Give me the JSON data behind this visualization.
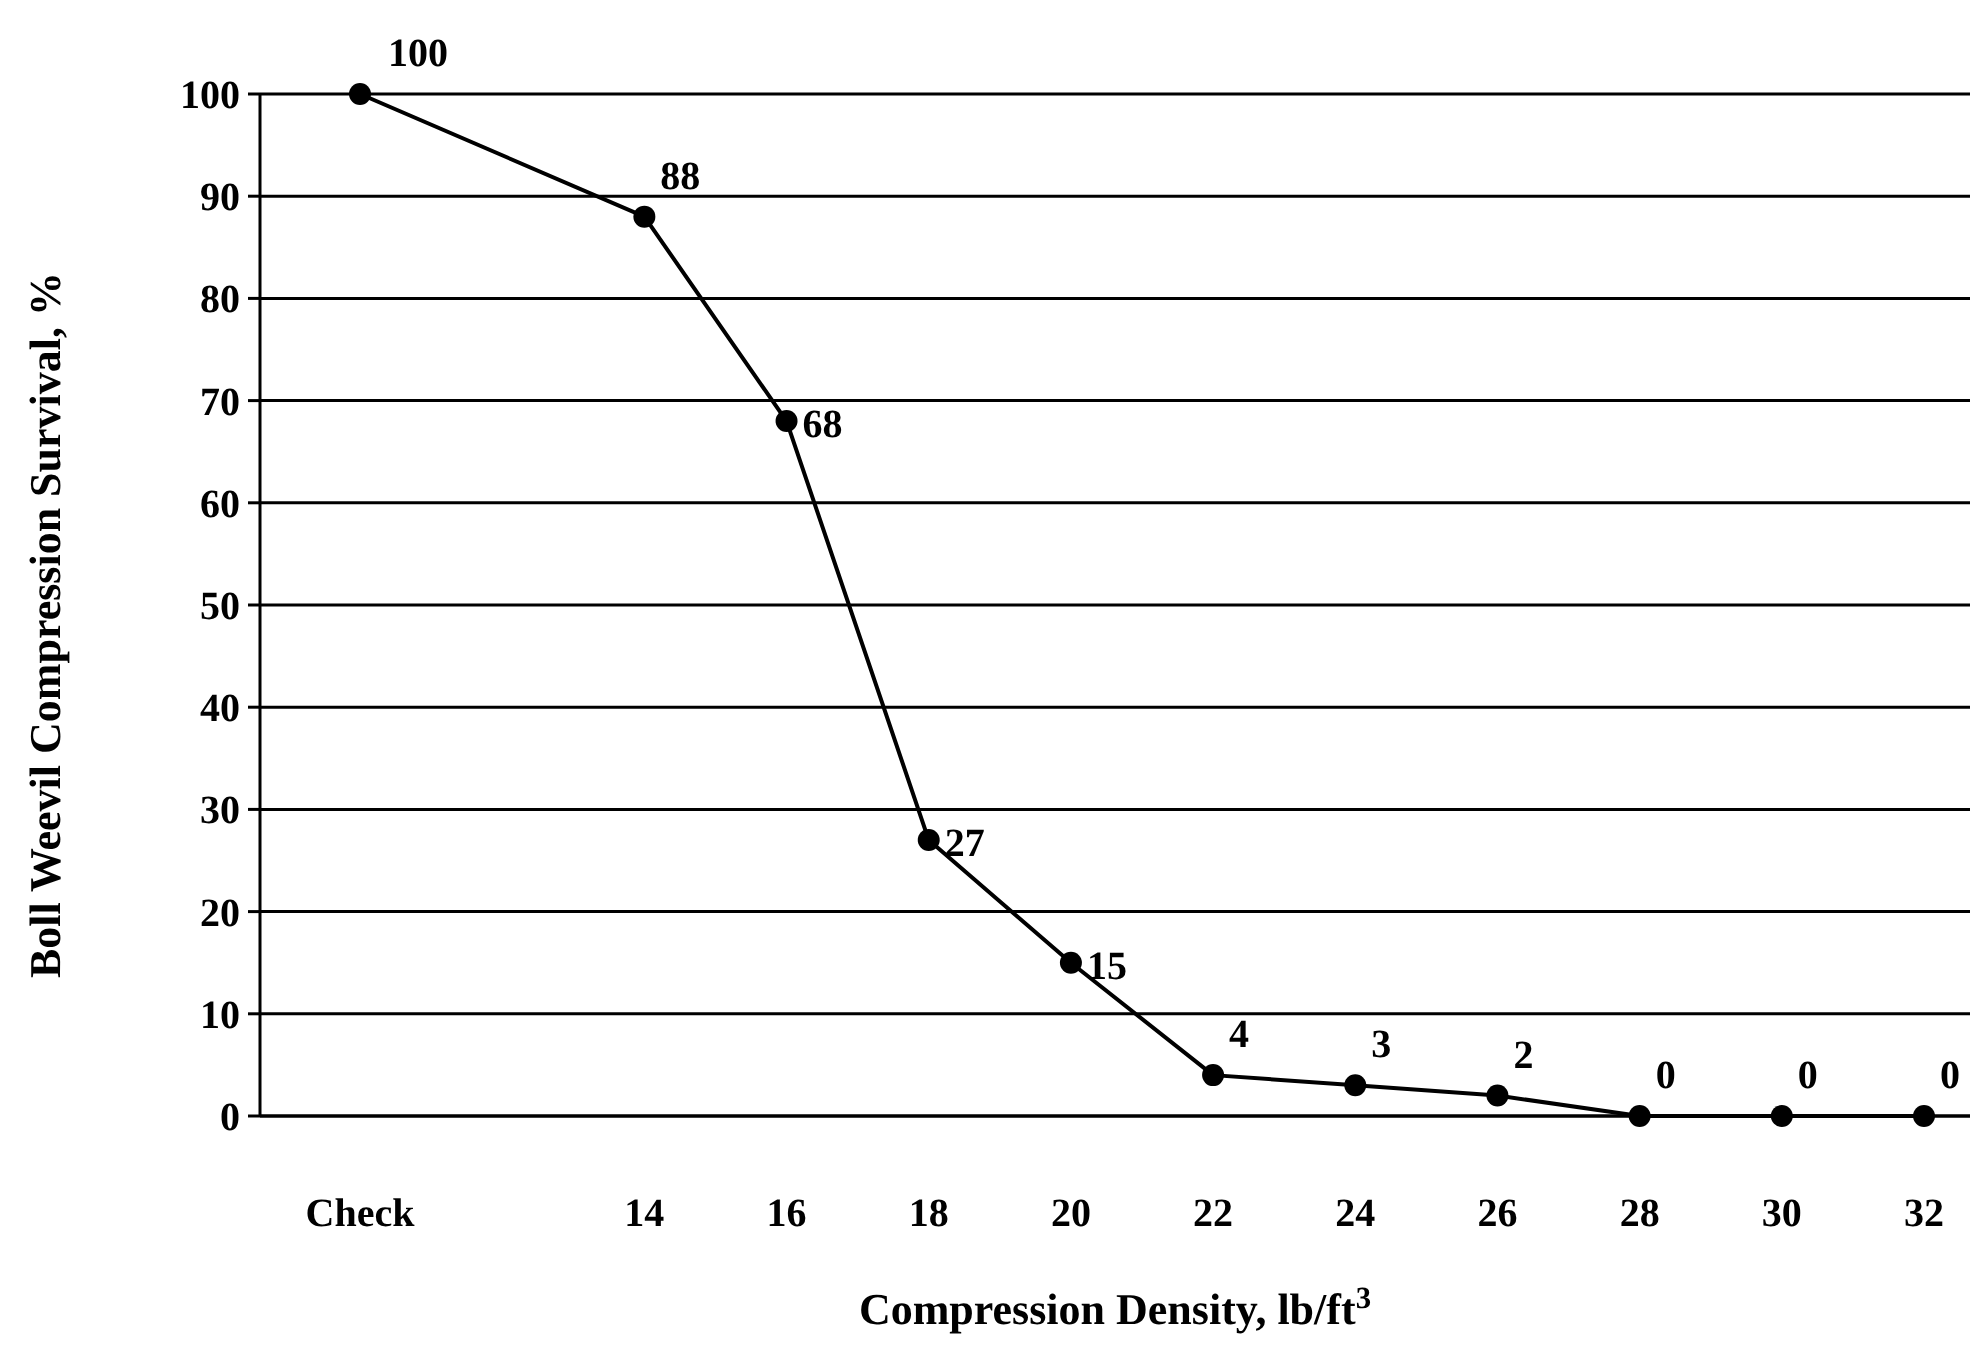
{
  "chart_data": {
    "type": "line",
    "xlabel": "Compression Density, lb/ft$^{3}$",
    "ylabel": "Boll Weevil Compression Survival, %",
    "categories": [
      "Check",
      null,
      "14",
      "16",
      "18",
      "20",
      "22",
      "24",
      "26",
      "28",
      "30",
      "32"
    ],
    "series": [
      {
        "color": "#000000",
        "values": [
          100,
          null,
          88,
          68,
          27,
          15,
          4,
          3,
          2,
          0,
          0,
          0
        ]
      }
    ],
    "ylim": [
      0,
      100
    ],
    "yticks": [
      0,
      10,
      20,
      30,
      40,
      50,
      60,
      70,
      80,
      90,
      100
    ],
    "grid": "y",
    "marker": "circle",
    "line_style": "solid",
    "data_labels": true
  }
}
